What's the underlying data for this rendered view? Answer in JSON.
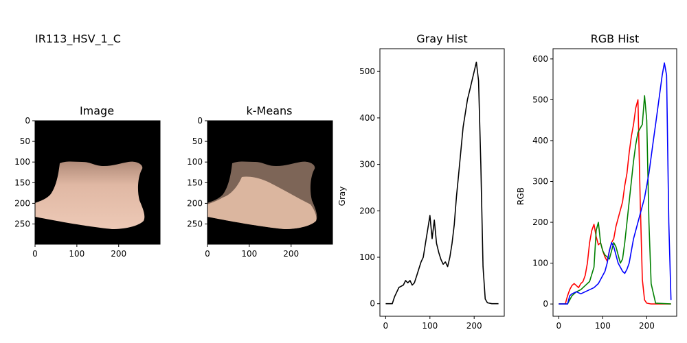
{
  "figure_title": "IR113_HSV_1_C",
  "colors": {
    "skin_light": "#e8c2ae",
    "skin_mid": "#d9b39e",
    "skin_dark": "#7d6557",
    "red": "#ff0000",
    "green": "#008000",
    "blue": "#0000ff",
    "black": "#000000"
  },
  "chart_data": [
    {
      "type": "image",
      "title": "Image",
      "xticks": [
        0,
        100,
        200
      ],
      "yticks": [
        0,
        50,
        100,
        150,
        200,
        250
      ],
      "xlim": [
        0,
        299
      ],
      "ylim": [
        299,
        0
      ]
    },
    {
      "type": "image",
      "title": "k-Means",
      "xticks": [
        0,
        100,
        200
      ],
      "yticks": [
        0,
        50,
        100,
        150,
        200,
        250
      ],
      "xlim": [
        0,
        299
      ],
      "ylim": [
        299,
        0
      ]
    },
    {
      "type": "line",
      "title": "Gray Hist",
      "xlabel": "",
      "ylabel": "Gray",
      "xlim": [
        -13,
        268
      ],
      "ylim": [
        -27,
        549
      ],
      "xticks": [
        0,
        100,
        200
      ],
      "yticks": [
        0,
        100,
        200,
        300,
        400,
        500
      ],
      "series": [
        {
          "color": "#000000",
          "x": [
            0,
            15,
            20,
            25,
            30,
            40,
            45,
            50,
            55,
            60,
            65,
            70,
            75,
            80,
            85,
            90,
            95,
            100,
            105,
            110,
            115,
            120,
            125,
            130,
            135,
            140,
            145,
            150,
            155,
            160,
            165,
            170,
            175,
            180,
            185,
            190,
            195,
            200,
            205,
            210,
            215,
            220,
            225,
            230,
            240,
            255
          ],
          "y": [
            0,
            0,
            15,
            25,
            35,
            40,
            50,
            45,
            50,
            40,
            45,
            60,
            75,
            90,
            100,
            130,
            160,
            190,
            140,
            180,
            130,
            110,
            95,
            85,
            90,
            80,
            100,
            130,
            170,
            230,
            280,
            330,
            380,
            410,
            440,
            460,
            480,
            500,
            520,
            480,
            300,
            80,
            10,
            2,
            0,
            0
          ]
        }
      ]
    },
    {
      "type": "line",
      "title": "RGB Hist",
      "xlabel": "",
      "ylabel": "RGB",
      "xlim": [
        -13,
        268
      ],
      "ylim": [
        -30,
        625
      ],
      "xticks": [
        0,
        100,
        200
      ],
      "yticks": [
        0,
        100,
        200,
        300,
        400,
        500,
        600
      ],
      "series": [
        {
          "color": "#ff0000",
          "x": [
            0,
            15,
            20,
            25,
            30,
            35,
            40,
            45,
            50,
            55,
            60,
            65,
            70,
            75,
            80,
            85,
            90,
            95,
            100,
            105,
            110,
            115,
            120,
            125,
            130,
            135,
            140,
            145,
            150,
            155,
            160,
            165,
            170,
            175,
            180,
            185,
            190,
            195,
            200,
            210,
            255
          ],
          "y": [
            0,
            0,
            20,
            35,
            45,
            50,
            45,
            40,
            50,
            55,
            70,
            100,
            150,
            180,
            195,
            165,
            145,
            150,
            130,
            115,
            105,
            130,
            150,
            160,
            190,
            210,
            230,
            250,
            290,
            320,
            370,
            410,
            440,
            480,
            500,
            260,
            60,
            10,
            2,
            0,
            0
          ]
        },
        {
          "color": "#008000",
          "x": [
            0,
            20,
            30,
            40,
            50,
            60,
            70,
            80,
            85,
            90,
            95,
            100,
            105,
            110,
            115,
            120,
            125,
            130,
            135,
            140,
            145,
            150,
            155,
            160,
            165,
            170,
            175,
            180,
            185,
            190,
            195,
            200,
            205,
            210,
            220,
            255
          ],
          "y": [
            0,
            0,
            20,
            30,
            35,
            45,
            55,
            90,
            180,
            200,
            150,
            130,
            120,
            115,
            110,
            130,
            150,
            140,
            120,
            100,
            110,
            150,
            200,
            250,
            300,
            350,
            390,
            420,
            430,
            440,
            510,
            450,
            200,
            50,
            2,
            0
          ]
        },
        {
          "color": "#0000ff",
          "x": [
            0,
            20,
            25,
            30,
            40,
            50,
            60,
            70,
            80,
            90,
            100,
            105,
            110,
            115,
            120,
            125,
            130,
            135,
            140,
            145,
            150,
            155,
            160,
            165,
            170,
            175,
            180,
            185,
            190,
            195,
            200,
            205,
            210,
            215,
            220,
            225,
            230,
            235,
            240,
            245,
            250,
            255
          ],
          "y": [
            0,
            0,
            20,
            25,
            30,
            25,
            30,
            35,
            40,
            50,
            70,
            80,
            100,
            130,
            150,
            140,
            120,
            100,
            90,
            80,
            75,
            85,
            100,
            130,
            160,
            180,
            200,
            220,
            240,
            260,
            290,
            320,
            360,
            400,
            440,
            480,
            520,
            560,
            590,
            560,
            200,
            10
          ]
        }
      ]
    }
  ]
}
